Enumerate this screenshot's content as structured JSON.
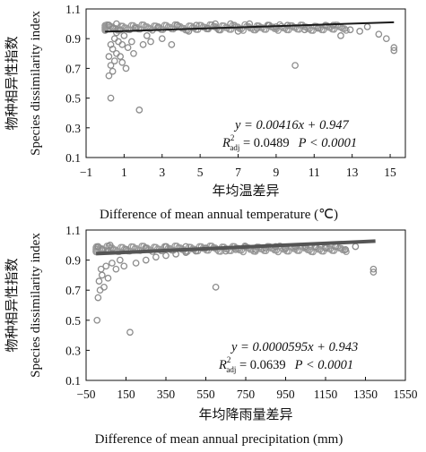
{
  "chart_data": [
    {
      "type": "scatter",
      "ylabel_cn": "物种相异性指数",
      "ylabel_en": "Species dissimilarity index",
      "xlabel_cn": "年均温差异",
      "xlabel_en": "Difference of mean annual temperature (℃)",
      "xlim": [
        -1,
        15.8
      ],
      "ylim": [
        0.1,
        1.1
      ],
      "xticks": [
        "−1",
        "1",
        "3",
        "5",
        "7",
        "9",
        "11",
        "13",
        "15"
      ],
      "yticks": [
        "0.1",
        "0.3",
        "0.5",
        "0.7",
        "0.9",
        "1.1"
      ],
      "equation": "y = 0.00416x + 0.947",
      "r2_label": "R",
      "r2_sup": "2",
      "r2_sub": "adj",
      "r2_text": " = 0.0489",
      "p_text": "P < 0.0001",
      "regression": {
        "slope": 0.00416,
        "intercept": 0.947,
        "x_range": [
          0,
          15.2
        ]
      },
      "points": [
        [
          0.3,
          0.5
        ],
        [
          0.2,
          0.65
        ],
        [
          0.4,
          0.68
        ],
        [
          0.3,
          0.72
        ],
        [
          0.5,
          0.75
        ],
        [
          0.2,
          0.78
        ],
        [
          0.6,
          0.8
        ],
        [
          0.4,
          0.83
        ],
        [
          0.3,
          0.86
        ],
        [
          0.7,
          0.88
        ],
        [
          0.9,
          0.86
        ],
        [
          0.5,
          0.9
        ],
        [
          1.2,
          0.84
        ],
        [
          1.1,
          0.7
        ],
        [
          0.8,
          0.78
        ],
        [
          1.5,
          0.8
        ],
        [
          1.8,
          0.42
        ],
        [
          0.9,
          0.74
        ],
        [
          1.4,
          0.88
        ],
        [
          2.0,
          0.86
        ],
        [
          2.4,
          0.88
        ],
        [
          3.0,
          0.9
        ],
        [
          3.5,
          0.86
        ],
        [
          1.0,
          0.92
        ],
        [
          2.2,
          0.92
        ],
        [
          0.6,
          0.94
        ],
        [
          4.4,
          0.95
        ],
        [
          5.4,
          0.97
        ],
        [
          6.0,
          0.96
        ],
        [
          7.0,
          0.95
        ],
        [
          8.0,
          0.97
        ],
        [
          9.0,
          0.98
        ],
        [
          10.0,
          0.72
        ],
        [
          10.5,
          0.96
        ],
        [
          11.2,
          0.97
        ],
        [
          12.0,
          0.99
        ],
        [
          12.4,
          0.92
        ],
        [
          13.4,
          0.95
        ],
        [
          13.8,
          0.98
        ],
        [
          14.4,
          0.93
        ],
        [
          14.8,
          0.9
        ],
        [
          15.2,
          0.82
        ],
        [
          15.2,
          0.84
        ],
        [
          12.9,
          0.96
        ],
        [
          11.6,
          0.99
        ],
        [
          9.6,
          0.99
        ],
        [
          8.6,
          0.99
        ],
        [
          7.6,
          1.0
        ],
        [
          6.6,
          1.0
        ],
        [
          5.8,
          1.0
        ],
        [
          4.8,
          0.99
        ],
        [
          3.8,
          0.99
        ],
        [
          2.8,
          0.98
        ],
        [
          1.6,
          0.97
        ],
        [
          0.8,
          0.96
        ],
        [
          0.4,
          0.97
        ],
        [
          0.2,
          0.99
        ],
        [
          0.6,
          1.0
        ]
      ]
    },
    {
      "type": "scatter",
      "ylabel_cn": "物种相异性指数",
      "ylabel_en": "Species dissimilarity index",
      "xlabel_cn": "年均降雨量差异",
      "xlabel_en": "Difference of mean annual precipitation (mm)",
      "xlim": [
        -50,
        1550
      ],
      "ylim": [
        0.1,
        1.1
      ],
      "xticks": [
        "−50",
        "150",
        "350",
        "550",
        "750",
        "950",
        "1150",
        "1350",
        "1550"
      ],
      "yticks": [
        "0.1",
        "0.3",
        "0.5",
        "0.7",
        "0.9",
        "1.1"
      ],
      "equation": "y = 0.0000595x + 0.943",
      "r2_label": "R",
      "r2_sup": "2",
      "r2_sub": "adj",
      "r2_text": " = 0.0639",
      "p_text": "P < 0.0001",
      "regression": {
        "slope": 5.95e-05,
        "intercept": 0.943,
        "x_range": [
          0,
          1400
        ]
      },
      "points": [
        [
          5,
          0.5
        ],
        [
          10,
          0.65
        ],
        [
          20,
          0.7
        ],
        [
          15,
          0.76
        ],
        [
          30,
          0.8
        ],
        [
          25,
          0.84
        ],
        [
          40,
          0.72
        ],
        [
          60,
          0.78
        ],
        [
          50,
          0.86
        ],
        [
          80,
          0.88
        ],
        [
          100,
          0.84
        ],
        [
          120,
          0.9
        ],
        [
          140,
          0.86
        ],
        [
          170,
          0.42
        ],
        [
          200,
          0.88
        ],
        [
          250,
          0.9
        ],
        [
          300,
          0.92
        ],
        [
          350,
          0.93
        ],
        [
          400,
          0.94
        ],
        [
          450,
          0.95
        ],
        [
          500,
          0.96
        ],
        [
          600,
          0.72
        ],
        [
          650,
          0.96
        ],
        [
          700,
          0.97
        ],
        [
          800,
          0.97
        ],
        [
          850,
          0.98
        ],
        [
          950,
          0.98
        ],
        [
          1050,
          0.99
        ],
        [
          1100,
          0.99
        ],
        [
          1200,
          0.99
        ],
        [
          1250,
          0.97
        ],
        [
          1300,
          0.99
        ],
        [
          1390,
          0.82
        ],
        [
          1390,
          0.84
        ],
        [
          1150,
          0.98
        ],
        [
          1000,
          0.99
        ],
        [
          900,
          0.99
        ],
        [
          750,
          0.99
        ],
        [
          550,
          0.98
        ],
        [
          450,
          0.99
        ],
        [
          350,
          0.99
        ],
        [
          250,
          0.98
        ],
        [
          150,
          0.97
        ],
        [
          60,
          0.96
        ],
        [
          30,
          0.97
        ],
        [
          10,
          0.99
        ],
        [
          70,
          1.0
        ]
      ]
    }
  ]
}
